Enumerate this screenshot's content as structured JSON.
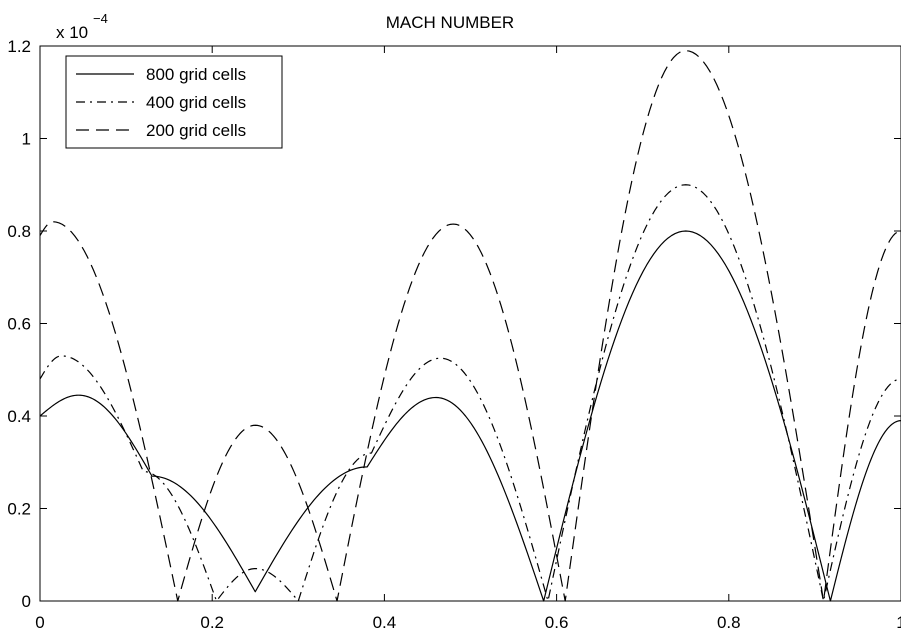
{
  "chart_data": {
    "type": "line",
    "title": "MACH NUMBER",
    "xlabel": "",
    "ylabel": "",
    "y_multiplier": {
      "base": "x 10",
      "exponent": "−4"
    },
    "xlim": [
      0,
      1
    ],
    "ylim": [
      0,
      1.2
    ],
    "xticks": [
      0,
      0.2,
      0.4,
      0.6,
      0.8,
      1
    ],
    "xtick_labels": [
      "0",
      "0.2",
      "0.4",
      "0.6",
      "0.8",
      "1"
    ],
    "yticks": [
      0,
      0.2,
      0.4,
      0.6,
      0.8,
      1.0,
      1.2
    ],
    "ytick_labels": [
      "0",
      "0.2",
      "0.4",
      "0.6",
      "0.8",
      "1",
      "1.2"
    ],
    "grid": false,
    "legend_position": "top-left",
    "series": [
      {
        "name": "800 grid cells",
        "style": "solid",
        "x": [
          0.0,
          0.045,
          0.13,
          0.25,
          0.38,
          0.46,
          0.585,
          0.75,
          0.918,
          1.0
        ],
        "y": [
          0.4,
          0.445,
          0.27,
          0.02,
          0.29,
          0.44,
          0.0,
          0.8,
          0.0,
          0.39
        ]
      },
      {
        "name": "400 grid cells",
        "style": "dashdot",
        "x": [
          0.0,
          0.025,
          0.12,
          0.205,
          0.25,
          0.3,
          0.385,
          0.465,
          0.59,
          0.75,
          0.91,
          1.0
        ],
        "y": [
          0.48,
          0.53,
          0.28,
          0.0,
          0.07,
          0.0,
          0.32,
          0.525,
          0.0,
          0.9,
          0.0,
          0.48
        ]
      },
      {
        "name": "200 grid cells",
        "style": "dashed",
        "x": [
          0.0,
          0.015,
          0.16,
          0.25,
          0.345,
          0.48,
          0.61,
          0.75,
          0.91,
          1.0
        ],
        "y": [
          0.79,
          0.82,
          0.0,
          0.38,
          0.0,
          0.815,
          0.0,
          1.19,
          0.0,
          0.8
        ]
      }
    ]
  }
}
